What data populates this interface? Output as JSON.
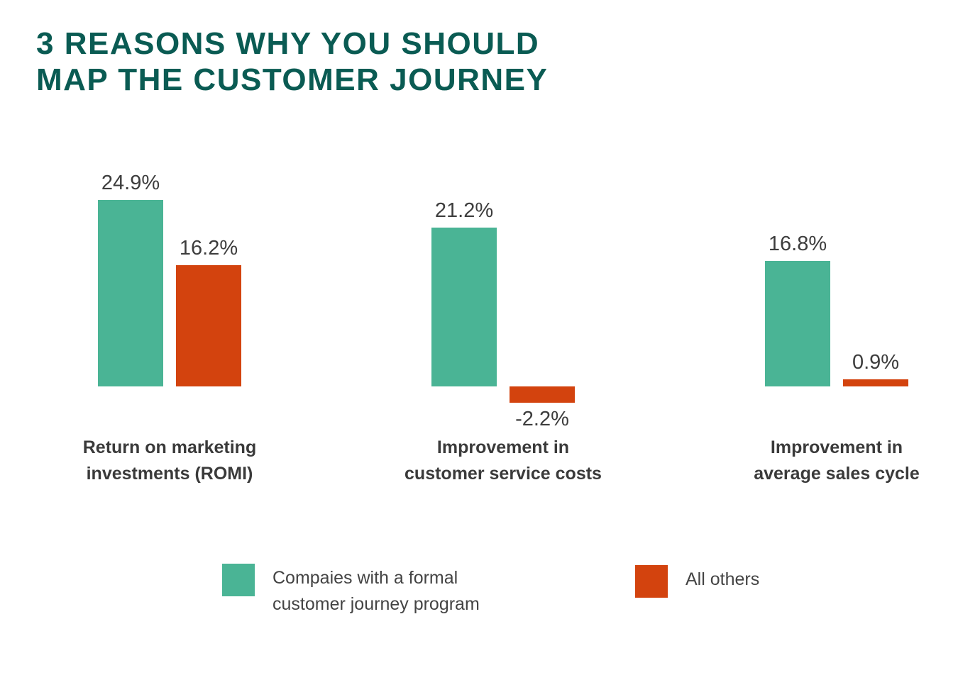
{
  "title": {
    "text": "3 REASONS WHY YOU SHOULD\nMAP THE CUSTOMER JOURNEY",
    "color": "#0a5b53"
  },
  "colors": {
    "companies_teal": "#4ab495",
    "others_orange": "#d3430e",
    "title_teal": "#0a5b53",
    "label_gray": "#3d3d3d"
  },
  "chart_data": {
    "type": "bar",
    "title": "3 REASONS WHY YOU SHOULD MAP THE CUSTOMER JOURNEY",
    "categories": [
      "Return on marketing\ninvestments (ROMI)",
      "Improvement in\ncustomer service costs",
      "Improvement in\naverage sales cycle"
    ],
    "series": [
      {
        "name": "Compaies with a formal customer journey program",
        "color": "#4ab495",
        "values": [
          24.9,
          21.2,
          16.8
        ]
      },
      {
        "name": "All others",
        "color": "#d3430e",
        "values": [
          16.2,
          -2.2,
          0.9
        ]
      }
    ],
    "value_labels": [
      [
        "24.9%",
        "16.2%"
      ],
      [
        "21.2%",
        "-2.2%"
      ],
      [
        "16.8%",
        "0.9%"
      ]
    ],
    "unit": "%",
    "xlabel": "",
    "ylabel": "",
    "ylim": [
      -3,
      27
    ],
    "grid": false,
    "axes_visible": false,
    "legend_position": "bottom"
  },
  "legend": {
    "items": [
      {
        "label": "Compaies with a formal\ncustomer journey program",
        "color": "#4ab495"
      },
      {
        "label": "All others",
        "color": "#d3430e"
      }
    ]
  }
}
